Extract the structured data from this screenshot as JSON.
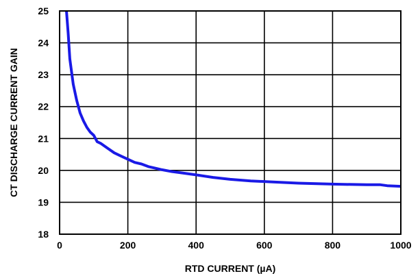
{
  "chart_data": {
    "type": "line",
    "title": "",
    "xlabel": "RTD CURRENT (µA)",
    "ylabel": "CT DISCHARGE CURRENT GAIN",
    "xlim": [
      0,
      1000
    ],
    "ylim": [
      18,
      25
    ],
    "xticks": [
      0,
      200,
      400,
      600,
      800,
      1000
    ],
    "yticks": [
      18,
      19,
      20,
      21,
      22,
      23,
      24,
      25
    ],
    "xtick_labels": [
      "0",
      "200",
      "400",
      "600",
      "800",
      "1000"
    ],
    "ytick_labels": [
      "18",
      "19",
      "20",
      "21",
      "22",
      "23",
      "24",
      "25"
    ],
    "grid": true,
    "legend": "none",
    "series": [
      {
        "color": "#1a1ae6",
        "x": [
          20,
          25,
          30,
          35,
          40,
          50,
          60,
          70,
          80,
          90,
          100,
          110,
          120,
          140,
          160,
          180,
          200,
          220,
          240,
          260,
          280,
          300,
          330,
          360,
          400,
          450,
          500,
          560,
          620,
          700,
          800,
          900,
          940,
          960,
          1000
        ],
        "y": [
          25.0,
          24.3,
          23.5,
          23.1,
          22.7,
          22.2,
          21.8,
          21.55,
          21.35,
          21.2,
          21.1,
          20.9,
          20.85,
          20.7,
          20.55,
          20.45,
          20.35,
          20.25,
          20.2,
          20.12,
          20.07,
          20.02,
          19.96,
          19.92,
          19.86,
          19.78,
          19.72,
          19.67,
          19.64,
          19.6,
          19.57,
          19.55,
          19.55,
          19.52,
          19.5
        ]
      }
    ]
  }
}
